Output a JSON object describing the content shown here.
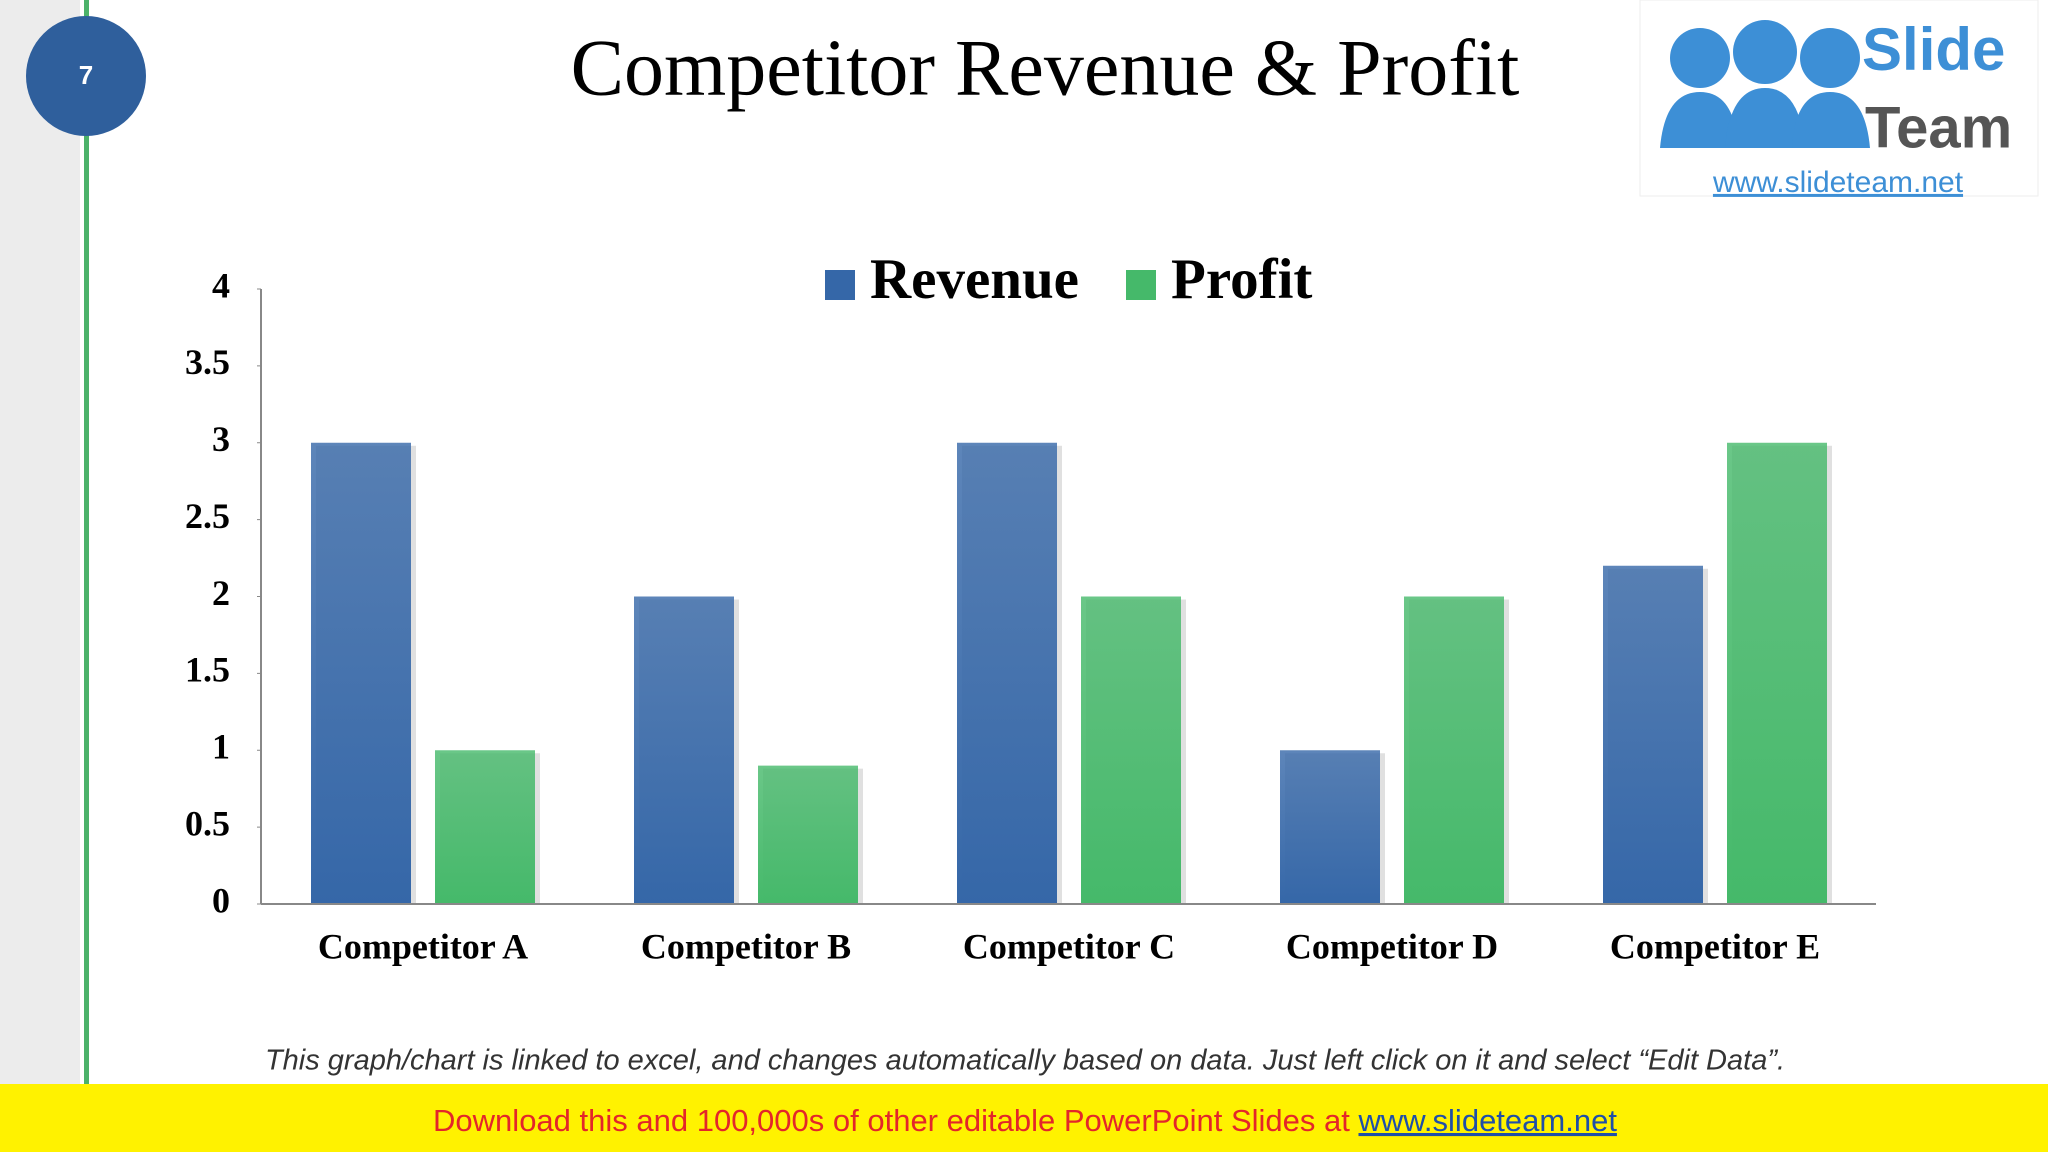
{
  "slide_number": "7",
  "title": "Competitor Revenue & Profit",
  "logo": {
    "line1": "Slide",
    "line2": "Team",
    "url": "www.slideteam.net"
  },
  "chart_data": {
    "type": "bar",
    "categories": [
      "Competitor A",
      "Competitor B",
      "Competitor C",
      "Competitor D",
      "Competitor E"
    ],
    "series": [
      {
        "name": "Revenue",
        "color": "#3567a8",
        "values": [
          3,
          2,
          3,
          1,
          2.2
        ]
      },
      {
        "name": "Profit",
        "color": "#45b96a",
        "values": [
          1,
          0.9,
          2,
          2,
          3
        ]
      }
    ],
    "ylim": [
      0,
      4
    ],
    "yticks": [
      0,
      0.5,
      1,
      1.5,
      2,
      2.5,
      3,
      3.5,
      4
    ],
    "grid": false,
    "legend": "top"
  },
  "footnote": "This graph/chart is linked to excel, and changes automatically based on data. Just left click on it and select “Edit Data”.",
  "banner": {
    "text": "Download this and 100,000s of other editable PowerPoint Slides at ",
    "link": "www.slideteam.net"
  }
}
